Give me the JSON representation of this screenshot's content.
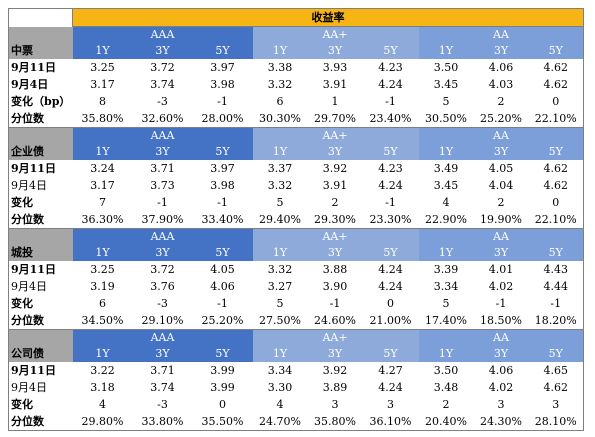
{
  "title": "收益率",
  "groups": [
    "AAA",
    "AA+",
    "AA"
  ],
  "tenors": [
    "1Y",
    "3Y",
    "5Y"
  ],
  "sections": [
    {
      "name": "中票",
      "rows": [
        {
          "label": "9月11日",
          "bold": true,
          "values": [
            "3.25",
            "3.72",
            "3.97",
            "3.38",
            "3.93",
            "4.23",
            "3.50",
            "4.06",
            "4.62"
          ]
        },
        {
          "label": "9月4日",
          "bold": true,
          "values": [
            "3.17",
            "3.74",
            "3.98",
            "3.32",
            "3.91",
            "4.24",
            "3.45",
            "4.03",
            "4.62"
          ]
        },
        {
          "label": "变化（bp）",
          "bold": true,
          "values": [
            "8",
            "-3",
            "-1",
            "6",
            "1",
            "-1",
            "5",
            "2",
            "0"
          ]
        },
        {
          "label": "分位数",
          "bold": true,
          "values": [
            "35.80%",
            "32.60%",
            "28.00%",
            "30.30%",
            "29.70%",
            "23.40%",
            "30.50%",
            "25.20%",
            "22.10%"
          ]
        }
      ]
    },
    {
      "name": "企业债",
      "rows": [
        {
          "label": "9月11日",
          "bold": true,
          "values": [
            "3.24",
            "3.71",
            "3.97",
            "3.37",
            "3.92",
            "4.23",
            "3.49",
            "4.05",
            "4.62"
          ]
        },
        {
          "label": "9月4日",
          "bold": false,
          "values": [
            "3.17",
            "3.73",
            "3.98",
            "3.32",
            "3.91",
            "4.24",
            "3.45",
            "4.04",
            "4.62"
          ]
        },
        {
          "label": "变化",
          "bold": true,
          "values": [
            "7",
            "-1",
            "-1",
            "5",
            "2",
            "-1",
            "4",
            "2",
            "0"
          ]
        },
        {
          "label": "分位数",
          "bold": true,
          "values": [
            "36.30%",
            "37.90%",
            "33.40%",
            "29.40%",
            "29.30%",
            "23.30%",
            "22.90%",
            "19.90%",
            "22.10%"
          ]
        }
      ]
    },
    {
      "name": "城投",
      "rows": [
        {
          "label": "9月11日",
          "bold": true,
          "values": [
            "3.25",
            "3.72",
            "4.05",
            "3.32",
            "3.88",
            "4.24",
            "3.39",
            "4.01",
            "4.43"
          ]
        },
        {
          "label": "9月4日",
          "bold": false,
          "values": [
            "3.19",
            "3.76",
            "4.06",
            "3.27",
            "3.90",
            "4.24",
            "3.34",
            "4.02",
            "4.44"
          ]
        },
        {
          "label": "变化",
          "bold": true,
          "values": [
            "6",
            "-3",
            "-1",
            "5",
            "-1",
            "0",
            "5",
            "-1",
            "-1"
          ]
        },
        {
          "label": "分位数",
          "bold": true,
          "values": [
            "34.50%",
            "29.10%",
            "25.20%",
            "27.50%",
            "24.60%",
            "21.00%",
            "17.40%",
            "18.50%",
            "18.20%"
          ]
        }
      ]
    },
    {
      "name": "公司债",
      "rows": [
        {
          "label": "9月11日",
          "bold": true,
          "values": [
            "3.22",
            "3.71",
            "3.99",
            "3.34",
            "3.92",
            "4.27",
            "3.50",
            "4.06",
            "4.65"
          ]
        },
        {
          "label": "9月4日",
          "bold": false,
          "values": [
            "3.18",
            "3.74",
            "3.99",
            "3.30",
            "3.89",
            "4.24",
            "3.48",
            "4.02",
            "4.62"
          ]
        },
        {
          "label": "变化",
          "bold": true,
          "values": [
            "4",
            "-3",
            "0",
            "4",
            "3",
            "3",
            "2",
            "3",
            "3"
          ]
        },
        {
          "label": "分位数",
          "bold": true,
          "values": [
            "29.80%",
            "33.80%",
            "35.50%",
            "24.70%",
            "35.80%",
            "36.10%",
            "20.40%",
            "24.30%",
            "28.10%"
          ]
        }
      ]
    }
  ]
}
